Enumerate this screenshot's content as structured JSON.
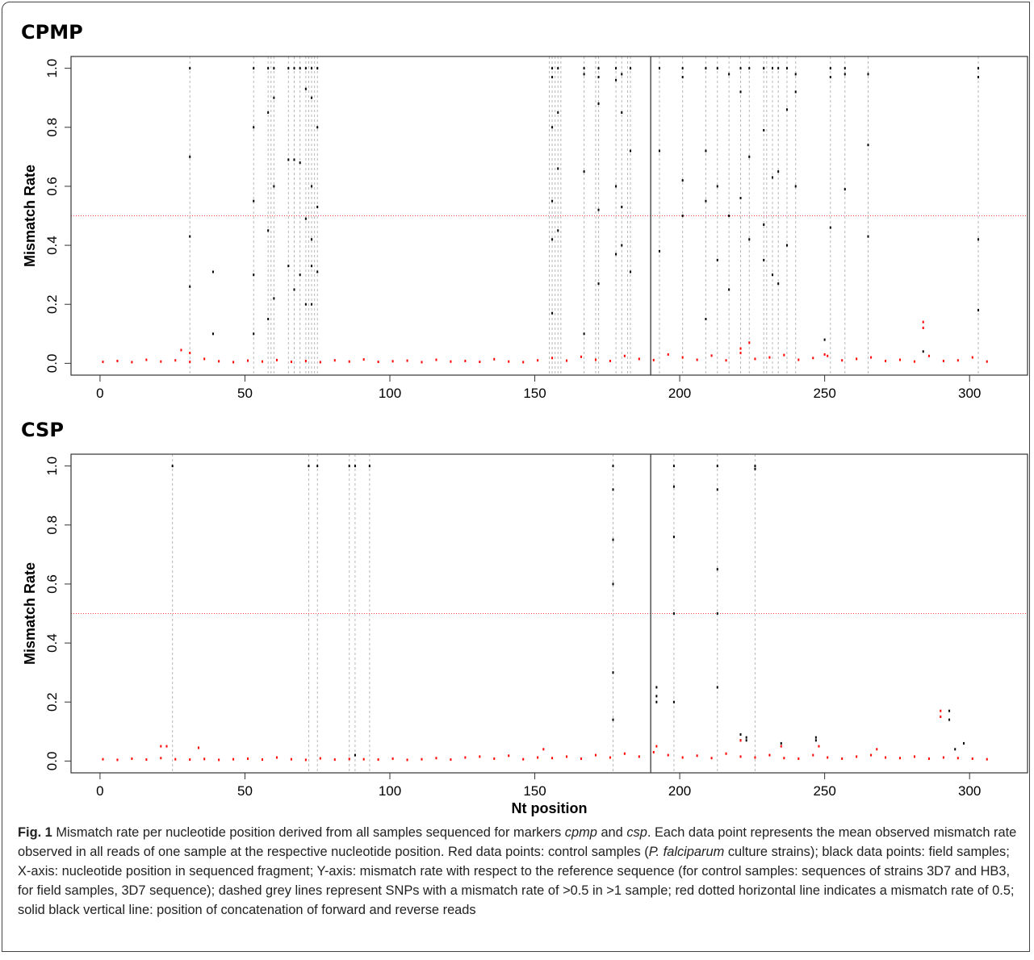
{
  "chart_data": [
    {
      "type": "scatter",
      "title": "CPMP",
      "ylabel": "Mismatch Rate",
      "xlim": [
        -10,
        320
      ],
      "ylim": [
        -0.04,
        1.04
      ],
      "xticks": [
        0,
        50,
        100,
        150,
        200,
        250,
        300
      ],
      "yticks": [
        {
          "value": 0,
          "label": "0.0"
        },
        {
          "value": 0.2,
          "label": "0.2"
        },
        {
          "value": 0.4,
          "label": "0.4"
        },
        {
          "value": 0.6,
          "label": "0.6"
        },
        {
          "value": 0.8,
          "label": "0.8"
        },
        {
          "value": 1,
          "label": "1.0"
        }
      ],
      "threshold": 0.5,
      "threshold_color": "#ff3b3b",
      "concat_position": 190,
      "snp_color": "#b8b8b8",
      "snp_positions": [
        31,
        53,
        58,
        59,
        60,
        65,
        67,
        69,
        71,
        72,
        73,
        74,
        75,
        155,
        156,
        157,
        158,
        159,
        167,
        171,
        172,
        178,
        180,
        182,
        183,
        193,
        201,
        209,
        213,
        217,
        221,
        224,
        229,
        230,
        232,
        234,
        237,
        240,
        252,
        257,
        265,
        303
      ],
      "series": [
        {
          "color": "#000000",
          "x": [
            31,
            31,
            31,
            31,
            39,
            39,
            53,
            53,
            53,
            53,
            53,
            58,
            58,
            58,
            58,
            60,
            60,
            60,
            60,
            65,
            65,
            65,
            67,
            67,
            67,
            69,
            69,
            69,
            71,
            71,
            71,
            71,
            73,
            73,
            73,
            73,
            73,
            73,
            75,
            75,
            75,
            75,
            156,
            156,
            156,
            156,
            156,
            156,
            158,
            158,
            158,
            158,
            167,
            167,
            167,
            167,
            172,
            172,
            172,
            172,
            172,
            178,
            178,
            178,
            178,
            180,
            180,
            180,
            180,
            183,
            183,
            183,
            193,
            193,
            193,
            201,
            201,
            201,
            201,
            209,
            209,
            209,
            209,
            213,
            213,
            213,
            217,
            217,
            217,
            221,
            221,
            221,
            224,
            224,
            224,
            229,
            229,
            229,
            229,
            232,
            232,
            232,
            234,
            234,
            234,
            237,
            237,
            237,
            240,
            240,
            240,
            250,
            252,
            252,
            252,
            257,
            257,
            257,
            265,
            265,
            265,
            284,
            303,
            303,
            303,
            303
          ],
          "values": [
            1.0,
            0.7,
            0.43,
            0.26,
            0.31,
            0.1,
            1.0,
            0.8,
            0.55,
            0.3,
            0.1,
            1.0,
            0.85,
            0.45,
            0.15,
            1.0,
            0.9,
            0.6,
            0.22,
            1.0,
            0.69,
            0.33,
            1.0,
            0.69,
            0.25,
            1.0,
            0.68,
            0.3,
            1.0,
            0.93,
            0.49,
            0.2,
            1.0,
            0.9,
            0.6,
            0.42,
            0.33,
            0.2,
            1.0,
            0.8,
            0.53,
            0.31,
            1.0,
            0.97,
            0.8,
            0.55,
            0.42,
            0.17,
            1.0,
            0.85,
            0.66,
            0.45,
            1.0,
            0.98,
            0.65,
            0.1,
            1.0,
            0.97,
            0.88,
            0.52,
            0.27,
            1.0,
            0.96,
            0.6,
            0.37,
            0.98,
            0.85,
            0.53,
            0.4,
            1.0,
            0.72,
            0.31,
            1.0,
            0.72,
            0.38,
            1.0,
            0.97,
            0.62,
            0.5,
            1.0,
            0.72,
            0.55,
            0.15,
            1.0,
            0.6,
            0.35,
            0.98,
            0.5,
            0.25,
            1.0,
            0.92,
            0.56,
            1.0,
            0.7,
            0.42,
            1.0,
            0.79,
            0.47,
            0.35,
            1.0,
            0.63,
            0.3,
            1.0,
            0.65,
            0.27,
            1.0,
            0.86,
            0.4,
            0.98,
            0.92,
            0.6,
            0.08,
            1.0,
            0.97,
            0.46,
            1.0,
            0.98,
            0.59,
            0.98,
            0.74,
            0.43,
            0.04,
            1.0,
            0.97,
            0.42,
            0.18
          ]
        },
        {
          "color": "#ff0000",
          "x": [
            1,
            6,
            11,
            16,
            21,
            26,
            31,
            36,
            41,
            46,
            51,
            56,
            61,
            66,
            71,
            76,
            81,
            86,
            91,
            96,
            101,
            106,
            111,
            116,
            121,
            126,
            131,
            136,
            141,
            146,
            151,
            156,
            161,
            166,
            171,
            176,
            181,
            186,
            191,
            196,
            201,
            206,
            211,
            216,
            221,
            226,
            231,
            236,
            241,
            246,
            251,
            256,
            261,
            266,
            271,
            276,
            281,
            286,
            291,
            296,
            301,
            306,
            28,
            31,
            221,
            224,
            250,
            284,
            284
          ],
          "values": [
            0.005,
            0.008,
            0.004,
            0.012,
            0.006,
            0.01,
            0.005,
            0.015,
            0.007,
            0.004,
            0.009,
            0.006,
            0.011,
            0.005,
            0.008,
            0.004,
            0.01,
            0.006,
            0.013,
            0.005,
            0.007,
            0.009,
            0.004,
            0.012,
            0.006,
            0.008,
            0.005,
            0.014,
            0.006,
            0.004,
            0.01,
            0.018,
            0.009,
            0.022,
            0.012,
            0.008,
            0.025,
            0.015,
            0.011,
            0.03,
            0.02,
            0.012,
            0.026,
            0.01,
            0.035,
            0.015,
            0.02,
            0.028,
            0.012,
            0.018,
            0.025,
            0.01,
            0.015,
            0.02,
            0.008,
            0.012,
            0.006,
            0.025,
            0.008,
            0.01,
            0.02,
            0.006,
            0.045,
            0.035,
            0.05,
            0.07,
            0.03,
            0.14,
            0.12
          ]
        }
      ]
    },
    {
      "type": "scatter",
      "title": "CSP",
      "ylabel": "Mismatch Rate",
      "xlabel": "Nt position",
      "xlim": [
        -10,
        320
      ],
      "ylim": [
        -0.04,
        1.04
      ],
      "xticks": [
        0,
        50,
        100,
        150,
        200,
        250,
        300
      ],
      "yticks": [
        {
          "value": 0,
          "label": "0.0"
        },
        {
          "value": 0.2,
          "label": "0.2"
        },
        {
          "value": 0.4,
          "label": "0.4"
        },
        {
          "value": 0.6,
          "label": "0.6"
        },
        {
          "value": 0.8,
          "label": "0.8"
        },
        {
          "value": 1,
          "label": "1.0"
        }
      ],
      "threshold": 0.5,
      "threshold_color": "#ff3b3b",
      "concat_position": 190,
      "snp_color": "#b8b8b8",
      "snp_positions": [
        25,
        72,
        75,
        86,
        88,
        93,
        177,
        198,
        213,
        226
      ],
      "series": [
        {
          "color": "#000000",
          "x": [
            25,
            72,
            75,
            86,
            88,
            88,
            93,
            177,
            177,
            177,
            177,
            177,
            177,
            192,
            192,
            192,
            198,
            198,
            198,
            198,
            198,
            213,
            213,
            213,
            213,
            213,
            221,
            221,
            223,
            223,
            226,
            226,
            235,
            247,
            247,
            293,
            293,
            295,
            298
          ],
          "values": [
            1.0,
            1.0,
            1.0,
            1.0,
            1.0,
            0.02,
            1.0,
            1.0,
            0.92,
            0.75,
            0.6,
            0.3,
            0.14,
            0.25,
            0.22,
            0.2,
            1.0,
            0.93,
            0.76,
            0.5,
            0.2,
            1.0,
            0.92,
            0.65,
            0.5,
            0.25,
            0.09,
            0.07,
            0.08,
            0.07,
            1.0,
            0.99,
            0.06,
            0.08,
            0.07,
            0.17,
            0.14,
            0.04,
            0.06
          ]
        },
        {
          "color": "#ff0000",
          "x": [
            1,
            6,
            11,
            16,
            21,
            26,
            31,
            36,
            41,
            46,
            51,
            56,
            61,
            66,
            71,
            76,
            81,
            86,
            91,
            96,
            101,
            106,
            111,
            116,
            121,
            126,
            131,
            136,
            141,
            146,
            151,
            156,
            161,
            166,
            171,
            176,
            181,
            186,
            191,
            196,
            201,
            206,
            211,
            216,
            221,
            226,
            231,
            236,
            241,
            246,
            251,
            256,
            261,
            266,
            271,
            276,
            281,
            286,
            291,
            296,
            301,
            306,
            21,
            23,
            34,
            153,
            192,
            221,
            235,
            248,
            268,
            290,
            290
          ],
          "values": [
            0.006,
            0.004,
            0.008,
            0.005,
            0.01,
            0.006,
            0.005,
            0.007,
            0.004,
            0.006,
            0.008,
            0.005,
            0.012,
            0.006,
            0.004,
            0.009,
            0.005,
            0.007,
            0.006,
            0.005,
            0.008,
            0.004,
            0.006,
            0.01,
            0.005,
            0.012,
            0.015,
            0.008,
            0.018,
            0.006,
            0.012,
            0.01,
            0.015,
            0.008,
            0.02,
            0.012,
            0.025,
            0.015,
            0.03,
            0.02,
            0.012,
            0.018,
            0.01,
            0.025,
            0.015,
            0.012,
            0.02,
            0.01,
            0.008,
            0.02,
            0.012,
            0.008,
            0.015,
            0.02,
            0.012,
            0.01,
            0.015,
            0.008,
            0.012,
            0.01,
            0.008,
            0.006,
            0.05,
            0.05,
            0.045,
            0.04,
            0.05,
            0.07,
            0.05,
            0.05,
            0.04,
            0.17,
            0.15
          ]
        }
      ]
    }
  ],
  "caption": {
    "label": "Fig. 1",
    "segments": [
      "Mismatch rate per nucleotide position derived from all samples sequenced for markers ",
      "cpmp",
      " and ",
      "csp",
      ". Each data point represents the mean observed mismatch rate observed in all reads of one sample at the respective nucleotide position. Red data points: control samples (",
      "P. falciparum",
      " culture strains); black data points: field samples; X-axis: nucleotide position in sequenced fragment; Y-axis: mismatch rate with respect to the reference sequence (for control samples: sequences of strains 3D7 and HB3, for field samples, 3D7 sequence); dashed grey lines represent SNPs with a mismatch rate of >0.5 in >1 sample; red dotted horizontal line indicates a mismatch rate of 0.5; solid black vertical line: position of concatenation of forward and reverse reads"
    ]
  }
}
